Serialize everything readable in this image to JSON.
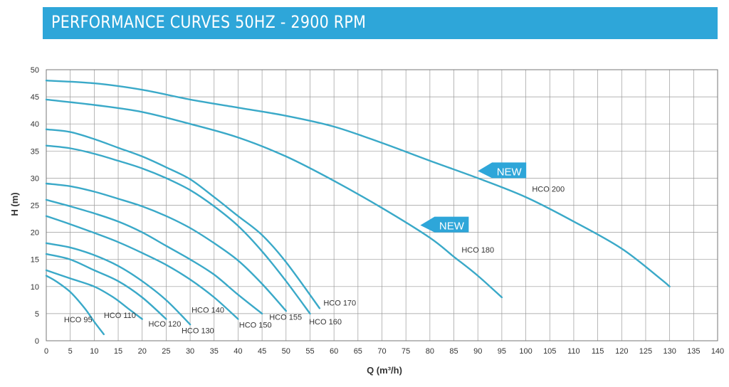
{
  "header": {
    "title": "PERFORMANCE CURVES 50HZ - 2900 RPM"
  },
  "colors": {
    "banner": "#2ea6d9",
    "curve": "#3aa9c8",
    "grid": "#9a9a9a",
    "text": "#333333"
  },
  "chart_data": {
    "type": "line",
    "title": "PERFORMANCE CURVES 50HZ - 2900 RPM",
    "xlabel": "Q (m³/h)",
    "ylabel": "H (m)",
    "xlim": [
      0,
      140
    ],
    "ylim": [
      0,
      50
    ],
    "xticks": [
      0,
      5,
      10,
      15,
      20,
      25,
      30,
      35,
      40,
      45,
      50,
      55,
      60,
      65,
      70,
      75,
      80,
      85,
      90,
      95,
      100,
      105,
      110,
      115,
      120,
      125,
      130,
      135,
      140
    ],
    "yticks": [
      0,
      5,
      10,
      15,
      20,
      25,
      30,
      35,
      40,
      45,
      50
    ],
    "grid": true,
    "legend": "none",
    "series": [
      {
        "name": "HCO 95",
        "x": [
          0,
          2,
          5,
          8,
          10,
          12
        ],
        "y": [
          12,
          11,
          9,
          6,
          3.5,
          1.2
        ]
      },
      {
        "name": "HCO 110",
        "x": [
          0,
          5,
          10,
          14,
          17,
          20
        ],
        "y": [
          13,
          11.5,
          10,
          8,
          6,
          4
        ]
      },
      {
        "name": "HCO 120",
        "x": [
          0,
          5,
          10,
          15,
          20,
          25
        ],
        "y": [
          16,
          15,
          13,
          11,
          8,
          4
        ]
      },
      {
        "name": "HCO 130",
        "x": [
          0,
          5,
          10,
          15,
          20,
          25,
          30
        ],
        "y": [
          18,
          17.2,
          15.8,
          13.8,
          11,
          7.5,
          3
        ]
      },
      {
        "name": "HCO 140",
        "x": [
          0,
          5,
          10,
          15,
          20,
          25,
          30,
          35,
          40
        ],
        "y": [
          23,
          21.5,
          19.9,
          18.2,
          16.2,
          14,
          11.3,
          8,
          4
        ]
      },
      {
        "name": "HCO 150",
        "x": [
          0,
          5,
          10,
          15,
          20,
          25,
          30,
          35,
          40,
          45
        ],
        "y": [
          26,
          24.8,
          23.5,
          22,
          20,
          17.5,
          15,
          12.2,
          8.5,
          5
        ]
      },
      {
        "name": "HCO 155",
        "x": [
          0,
          5,
          10,
          15,
          20,
          25,
          30,
          35,
          40,
          45,
          50
        ],
        "y": [
          29,
          28.5,
          27.5,
          26.2,
          24.8,
          23,
          20.8,
          18,
          14.8,
          10.5,
          5.5
        ]
      },
      {
        "name": "HCO 160",
        "x": [
          0,
          5,
          10,
          15,
          20,
          25,
          30,
          35,
          40,
          45,
          50,
          55
        ],
        "y": [
          36,
          35.5,
          34.5,
          33.2,
          31.8,
          30,
          27.8,
          24.8,
          21.2,
          16.5,
          11,
          5
        ]
      },
      {
        "name": "HCO 170",
        "x": [
          0,
          5,
          10,
          15,
          20,
          25,
          30,
          35,
          40,
          45,
          50,
          57
        ],
        "y": [
          39,
          38.5,
          37.2,
          35.6,
          34,
          32,
          29.8,
          26.5,
          23,
          19.5,
          14.5,
          6
        ]
      },
      {
        "name": "HCO 180",
        "x": [
          0,
          10,
          20,
          30,
          40,
          50,
          60,
          70,
          80,
          85,
          90,
          95
        ],
        "y": [
          44.5,
          43.5,
          42.2,
          40,
          37.5,
          34,
          29.5,
          24.5,
          19,
          15.5,
          12,
          8
        ]
      },
      {
        "name": "HCO 200",
        "x": [
          0,
          10,
          20,
          30,
          40,
          50,
          60,
          70,
          80,
          90,
          100,
          110,
          120,
          128,
          130
        ],
        "y": [
          48,
          47.5,
          46.3,
          44.5,
          43,
          41.5,
          39.5,
          36.5,
          33.2,
          30,
          26.5,
          22,
          17,
          11.5,
          10
        ]
      }
    ],
    "series_labels": [
      {
        "text": "HCO 95",
        "x": 3.7,
        "y": 3.4
      },
      {
        "text": "HCO 110",
        "x": 12,
        "y": 4.2
      },
      {
        "text": "HCO 120",
        "x": 21.3,
        "y": 2.6
      },
      {
        "text": "HCO 130",
        "x": 28.2,
        "y": 1.4
      },
      {
        "text": "HCO 140",
        "x": 30.3,
        "y": 5.2
      },
      {
        "text": "HCO 150",
        "x": 40.2,
        "y": 2.4
      },
      {
        "text": "HCO 155",
        "x": 46.5,
        "y": 3.9
      },
      {
        "text": "HCO 160",
        "x": 54.8,
        "y": 3.0
      },
      {
        "text": "HCO 170",
        "x": 57.8,
        "y": 6.5
      },
      {
        "text": "HCO 180",
        "x": 86.6,
        "y": 16.3
      },
      {
        "text": "HCO 200",
        "x": 101.3,
        "y": 27.5
      }
    ],
    "annotations": [
      {
        "text": "NEW",
        "x": 90,
        "y": 30,
        "series": "HCO 200"
      },
      {
        "text": "NEW",
        "x": 78,
        "y": 20,
        "series": "HCO 180"
      }
    ]
  }
}
